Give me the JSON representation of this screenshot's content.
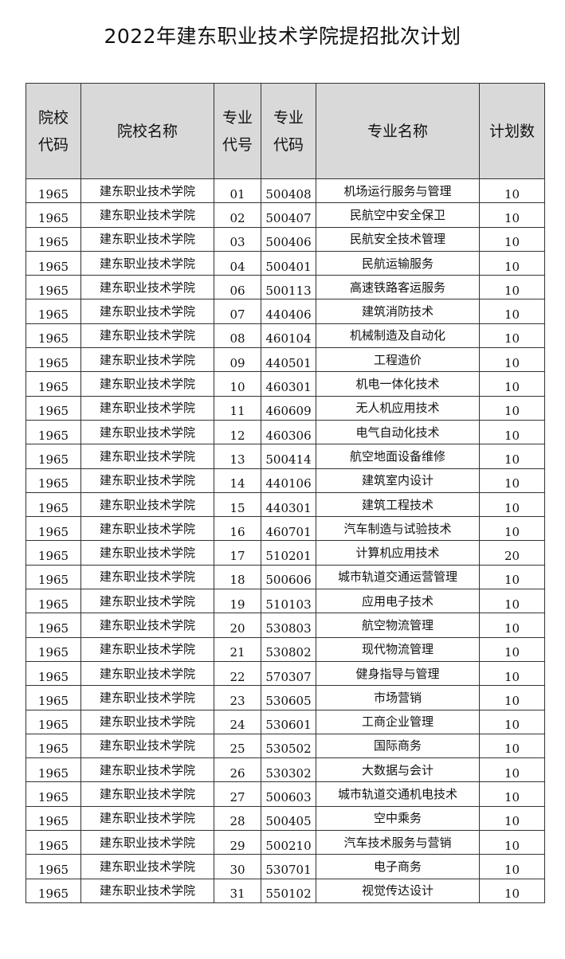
{
  "title": "2022年建东职业技术学院提招批次计划",
  "headers": {
    "school_code": [
      "院校",
      "代码"
    ],
    "school_name": "院校名称",
    "major_no": [
      "专业",
      "代号"
    ],
    "major_code": [
      "专业",
      "代码"
    ],
    "major_name": "专业名称",
    "plan": "计划数"
  },
  "rows": [
    {
      "school_code": "1965",
      "school_name": "建东职业技术学院",
      "major_no": "01",
      "major_code": "500408",
      "major_name": "机场运行服务与管理",
      "plan": "10"
    },
    {
      "school_code": "1965",
      "school_name": "建东职业技术学院",
      "major_no": "02",
      "major_code": "500407",
      "major_name": "民航空中安全保卫",
      "plan": "10"
    },
    {
      "school_code": "1965",
      "school_name": "建东职业技术学院",
      "major_no": "03",
      "major_code": "500406",
      "major_name": "民航安全技术管理",
      "plan": "10"
    },
    {
      "school_code": "1965",
      "school_name": "建东职业技术学院",
      "major_no": "04",
      "major_code": "500401",
      "major_name": "民航运输服务",
      "plan": "10"
    },
    {
      "school_code": "1965",
      "school_name": "建东职业技术学院",
      "major_no": "06",
      "major_code": "500113",
      "major_name": "高速铁路客运服务",
      "plan": "10"
    },
    {
      "school_code": "1965",
      "school_name": "建东职业技术学院",
      "major_no": "07",
      "major_code": "440406",
      "major_name": "建筑消防技术",
      "plan": "10"
    },
    {
      "school_code": "1965",
      "school_name": "建东职业技术学院",
      "major_no": "08",
      "major_code": "460104",
      "major_name": "机械制造及自动化",
      "plan": "10"
    },
    {
      "school_code": "1965",
      "school_name": "建东职业技术学院",
      "major_no": "09",
      "major_code": "440501",
      "major_name": "工程造价",
      "plan": "10"
    },
    {
      "school_code": "1965",
      "school_name": "建东职业技术学院",
      "major_no": "10",
      "major_code": "460301",
      "major_name": "机电一体化技术",
      "plan": "10"
    },
    {
      "school_code": "1965",
      "school_name": "建东职业技术学院",
      "major_no": "11",
      "major_code": "460609",
      "major_name": "无人机应用技术",
      "plan": "10"
    },
    {
      "school_code": "1965",
      "school_name": "建东职业技术学院",
      "major_no": "12",
      "major_code": "460306",
      "major_name": "电气自动化技术",
      "plan": "10"
    },
    {
      "school_code": "1965",
      "school_name": "建东职业技术学院",
      "major_no": "13",
      "major_code": "500414",
      "major_name": "航空地面设备维修",
      "plan": "10"
    },
    {
      "school_code": "1965",
      "school_name": "建东职业技术学院",
      "major_no": "14",
      "major_code": "440106",
      "major_name": "建筑室内设计",
      "plan": "10"
    },
    {
      "school_code": "1965",
      "school_name": "建东职业技术学院",
      "major_no": "15",
      "major_code": "440301",
      "major_name": "建筑工程技术",
      "plan": "10"
    },
    {
      "school_code": "1965",
      "school_name": "建东职业技术学院",
      "major_no": "16",
      "major_code": "460701",
      "major_name": "汽车制造与试验技术",
      "plan": "10"
    },
    {
      "school_code": "1965",
      "school_name": "建东职业技术学院",
      "major_no": "17",
      "major_code": "510201",
      "major_name": "计算机应用技术",
      "plan": "20"
    },
    {
      "school_code": "1965",
      "school_name": "建东职业技术学院",
      "major_no": "18",
      "major_code": "500606",
      "major_name": "城市轨道交通运营管理",
      "plan": "10"
    },
    {
      "school_code": "1965",
      "school_name": "建东职业技术学院",
      "major_no": "19",
      "major_code": "510103",
      "major_name": "应用电子技术",
      "plan": "10"
    },
    {
      "school_code": "1965",
      "school_name": "建东职业技术学院",
      "major_no": "20",
      "major_code": "530803",
      "major_name": "航空物流管理",
      "plan": "10"
    },
    {
      "school_code": "1965",
      "school_name": "建东职业技术学院",
      "major_no": "21",
      "major_code": "530802",
      "major_name": "现代物流管理",
      "plan": "10"
    },
    {
      "school_code": "1965",
      "school_name": "建东职业技术学院",
      "major_no": "22",
      "major_code": "570307",
      "major_name": "健身指导与管理",
      "plan": "10"
    },
    {
      "school_code": "1965",
      "school_name": "建东职业技术学院",
      "major_no": "23",
      "major_code": "530605",
      "major_name": "市场营销",
      "plan": "10"
    },
    {
      "school_code": "1965",
      "school_name": "建东职业技术学院",
      "major_no": "24",
      "major_code": "530601",
      "major_name": "工商企业管理",
      "plan": "10"
    },
    {
      "school_code": "1965",
      "school_name": "建东职业技术学院",
      "major_no": "25",
      "major_code": "530502",
      "major_name": "国际商务",
      "plan": "10"
    },
    {
      "school_code": "1965",
      "school_name": "建东职业技术学院",
      "major_no": "26",
      "major_code": "530302",
      "major_name": "大数据与会计",
      "plan": "10"
    },
    {
      "school_code": "1965",
      "school_name": "建东职业技术学院",
      "major_no": "27",
      "major_code": "500603",
      "major_name": "城市轨道交通机电技术",
      "plan": "10"
    },
    {
      "school_code": "1965",
      "school_name": "建东职业技术学院",
      "major_no": "28",
      "major_code": "500405",
      "major_name": "空中乘务",
      "plan": "10"
    },
    {
      "school_code": "1965",
      "school_name": "建东职业技术学院",
      "major_no": "29",
      "major_code": "500210",
      "major_name": "汽车技术服务与营销",
      "plan": "10"
    },
    {
      "school_code": "1965",
      "school_name": "建东职业技术学院",
      "major_no": "30",
      "major_code": "530701",
      "major_name": "电子商务",
      "plan": "10"
    },
    {
      "school_code": "1965",
      "school_name": "建东职业技术学院",
      "major_no": "31",
      "major_code": "550102",
      "major_name": "视觉传达设计",
      "plan": "10"
    }
  ]
}
